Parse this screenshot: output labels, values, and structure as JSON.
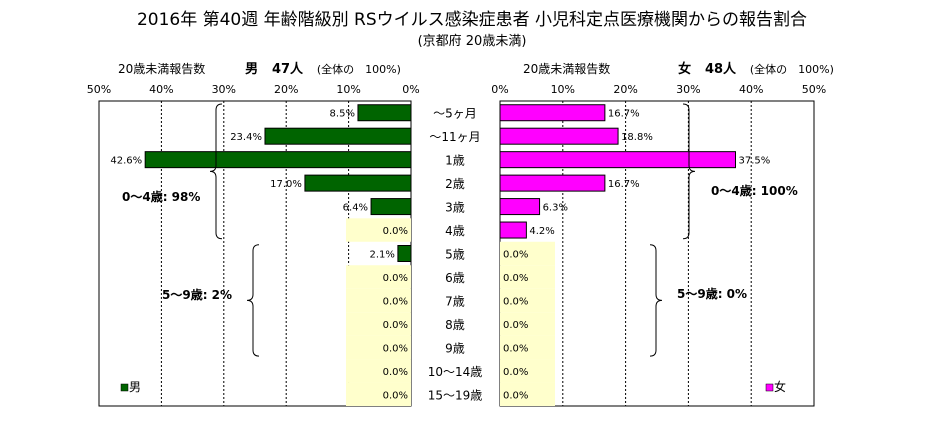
{
  "chart_data": {
    "type": "bar",
    "title": "2016年 第40週 年齢階級別 RSウイルス感染症患者 小児科定点医療機関からの報告割合",
    "subtitle": "(京都府 20歳未満)",
    "categories": [
      "～5ヶ月",
      "～11ヶ月",
      "1歳",
      "2歳",
      "3歳",
      "4歳",
      "5歳",
      "6歳",
      "7歳",
      "8歳",
      "9歳",
      "10～14歳",
      "15～19歳"
    ],
    "series": [
      {
        "name": "男",
        "color": "#006400",
        "values": [
          8.5,
          23.4,
          42.6,
          17.0,
          6.4,
          0.0,
          2.1,
          0.0,
          0.0,
          0.0,
          0.0,
          0.0,
          0.0
        ],
        "labels": [
          "8.5%",
          "23.4%",
          "42.6%",
          "17.0%",
          "6.4%",
          "0.0%",
          "2.1%",
          "0.0%",
          "0.0%",
          "0.0%",
          "0.0%",
          "0.0%",
          "0.0%"
        ]
      },
      {
        "name": "女",
        "color": "#ff00ff",
        "values": [
          16.7,
          18.8,
          37.5,
          16.7,
          6.3,
          4.2,
          0.0,
          0.0,
          0.0,
          0.0,
          0.0,
          0.0,
          0.0
        ],
        "labels": [
          "16.7%",
          "18.8%",
          "37.5%",
          "16.7%",
          "6.3%",
          "4.2%",
          "0.0%",
          "0.0%",
          "0.0%",
          "0.0%",
          "0.0%",
          "0.0%",
          "0.0%"
        ]
      }
    ],
    "xlim": [
      0,
      50
    ],
    "ticks": [
      "0%",
      "10%",
      "20%",
      "30%",
      "40%",
      "50%"
    ],
    "grid": true,
    "left_header": {
      "label": "20歳未満報告数",
      "sex": "男",
      "count": "47人",
      "note": "(全体の　100%)"
    },
    "right_header": {
      "label": "20歳未満報告数",
      "sex": "女",
      "count": "48人",
      "note": "(全体の　100%)"
    },
    "annotations": {
      "male_0_4": "0～4歳: 98%",
      "male_5_9": "5～9歳: 2%",
      "female_0_4": "0～4歳: 100%",
      "female_5_9": "5～9歳: 0%"
    },
    "legend": {
      "male": "男",
      "female": "女",
      "placement": "bottom"
    }
  }
}
